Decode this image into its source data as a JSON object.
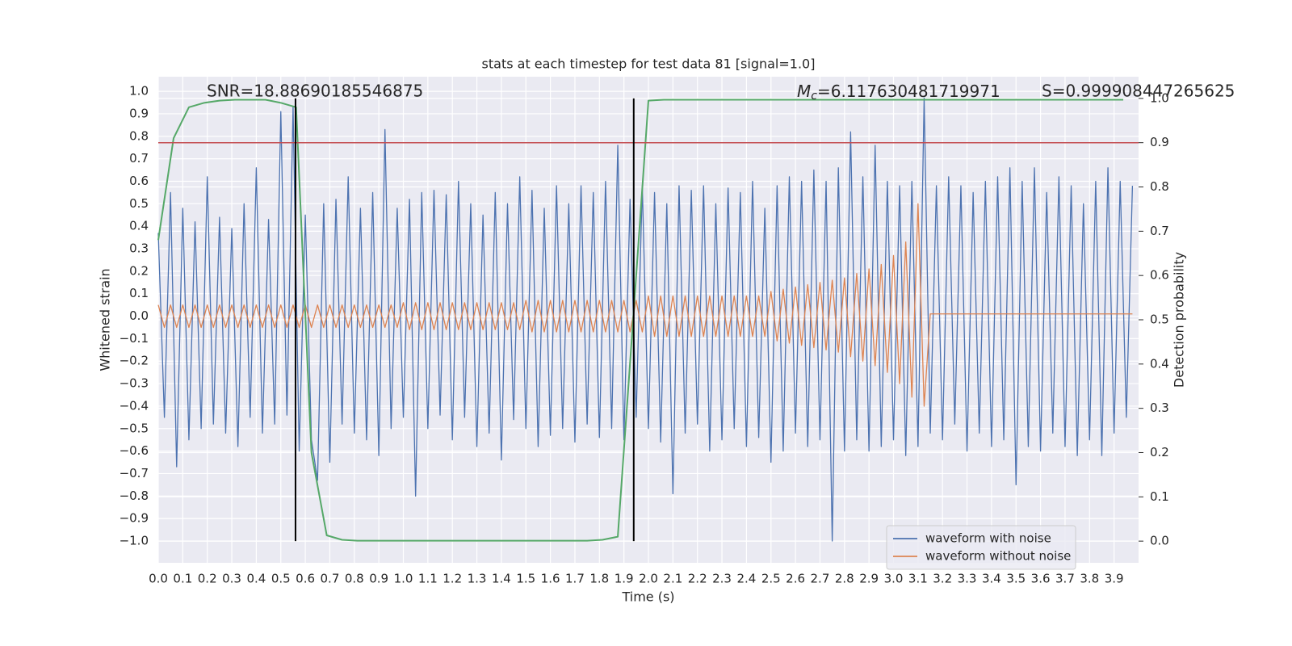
{
  "chart_data": {
    "type": "line",
    "title": "stats at each timestep for test data 81 [signal=1.0]",
    "xlabel": "Time (s)",
    "ylabel": "Whitened strain",
    "y2label": "Detection probability",
    "annotations": {
      "snr": "SNR=18.88690185546875",
      "mc_symbol": "M",
      "mc_subscript": "c",
      "mc_value": "=6.117630481719971",
      "s": "S=0.999908447265625"
    },
    "xlim": [
      0,
      4.0
    ],
    "ylim": [
      -1.097,
      1.065
    ],
    "y2lim": [
      -0.049,
      1.049
    ],
    "grid": true,
    "legend": "lower right",
    "xticks": [
      {
        "value": 0,
        "label": "0.0"
      },
      0.1,
      0.2,
      0.3,
      0.4,
      0.5,
      0.6,
      0.7,
      0.8,
      0.9,
      {
        "value": 1,
        "label": "1.0"
      },
      1.1,
      1.2,
      1.3,
      1.4,
      1.5,
      1.6,
      1.7,
      1.8,
      1.9,
      {
        "value": 2,
        "label": "2.0"
      },
      2.1,
      2.2,
      2.3,
      2.4,
      2.5,
      2.6,
      2.7,
      2.8,
      2.9,
      {
        "value": 3,
        "label": "3.0"
      },
      3.1,
      3.2,
      3.3,
      3.4,
      3.5,
      3.6,
      3.7,
      3.8,
      3.9
    ],
    "yticks": [
      {
        "value": -1,
        "label": "−1.0"
      },
      {
        "value": -0.9,
        "label": "−0.9"
      },
      {
        "value": -0.8,
        "label": "−0.8"
      },
      {
        "value": -0.7,
        "label": "−0.7"
      },
      {
        "value": -0.6,
        "label": "−0.6"
      },
      {
        "value": -0.5,
        "label": "−0.5"
      },
      {
        "value": -0.4,
        "label": "−0.4"
      },
      {
        "value": -0.3,
        "label": "−0.3"
      },
      {
        "value": -0.2,
        "label": "−0.2"
      },
      {
        "value": -0.1,
        "label": "−0.1"
      },
      {
        "value": 0,
        "label": "0.0"
      },
      0.1,
      0.2,
      0.3,
      0.4,
      0.5,
      0.6,
      0.7,
      0.8,
      0.9,
      {
        "value": 1,
        "label": "1.0"
      }
    ],
    "y2ticks": [
      {
        "value": 0,
        "label": "0.0"
      },
      0.1,
      0.2,
      0.3,
      0.4,
      0.5,
      0.6,
      0.7,
      0.8,
      0.9,
      {
        "value": 1,
        "label": "1.0"
      }
    ],
    "x": [
      0,
      0.025,
      0.05,
      0.075,
      0.1,
      0.125,
      0.15,
      0.175,
      0.2,
      0.225,
      0.25,
      0.275,
      0.3,
      0.325,
      0.35,
      0.375,
      0.4,
      0.425,
      0.45,
      0.475,
      0.5,
      0.525,
      0.55,
      0.575,
      0.6,
      0.625,
      0.65,
      0.675,
      0.7,
      0.725,
      0.75,
      0.775,
      0.8,
      0.825,
      0.85,
      0.875,
      0.9,
      0.925,
      0.95,
      0.975,
      1,
      1.025,
      1.05,
      1.075,
      1.1,
      1.125,
      1.15,
      1.175,
      1.2,
      1.225,
      1.25,
      1.275,
      1.3,
      1.325,
      1.35,
      1.375,
      1.4,
      1.425,
      1.45,
      1.475,
      1.5,
      1.525,
      1.55,
      1.575,
      1.6,
      1.625,
      1.65,
      1.675,
      1.7,
      1.725,
      1.75,
      1.775,
      1.8,
      1.825,
      1.85,
      1.875,
      1.9,
      1.925,
      1.95,
      1.975,
      2,
      2.025,
      2.05,
      2.075,
      2.1,
      2.125,
      2.15,
      2.175,
      2.2,
      2.225,
      2.25,
      2.275,
      2.3,
      2.325,
      2.35,
      2.375,
      2.4,
      2.425,
      2.45,
      2.475,
      2.5,
      2.525,
      2.55,
      2.575,
      2.6,
      2.625,
      2.65,
      2.675,
      2.7,
      2.725,
      2.75,
      2.775,
      2.8,
      2.825,
      2.85,
      2.875,
      2.9,
      2.925,
      2.95,
      2.975,
      3,
      3.025,
      3.05,
      3.075,
      3.1,
      3.125,
      3.15,
      3.175,
      3.2,
      3.225,
      3.25,
      3.275,
      3.3,
      3.325,
      3.35,
      3.375,
      3.4,
      3.425,
      3.45,
      3.475,
      3.5,
      3.525,
      3.55,
      3.575,
      3.6,
      3.625,
      3.65,
      3.675,
      3.7,
      3.725,
      3.75,
      3.775,
      3.8,
      3.825,
      3.85,
      3.875,
      3.9,
      3.925,
      3.95,
      3.975
    ],
    "series": [
      {
        "name": "waveform with noise",
        "color": "#4c72b0",
        "values": [
          0.37,
          -0.45,
          0.55,
          -0.67,
          0.48,
          -0.55,
          0.42,
          -0.5,
          0.62,
          -0.48,
          0.44,
          -0.52,
          0.39,
          -0.58,
          0.5,
          -0.45,
          0.66,
          -0.52,
          0.43,
          -0.48,
          0.91,
          -0.44,
          0.93,
          -0.6,
          0.45,
          -0.55,
          -0.73,
          0.5,
          -0.65,
          0.52,
          -0.48,
          0.62,
          -0.52,
          0.48,
          -0.55,
          0.55,
          -0.62,
          0.83,
          -0.5,
          0.48,
          -0.45,
          0.52,
          -0.8,
          0.55,
          -0.5,
          0.56,
          -0.44,
          0.54,
          -0.55,
          0.6,
          -0.45,
          0.5,
          -0.58,
          0.45,
          -0.52,
          0.55,
          -0.64,
          0.5,
          -0.46,
          0.62,
          -0.5,
          0.56,
          -0.58,
          0.48,
          -0.53,
          0.58,
          -0.5,
          0.5,
          -0.56,
          0.58,
          -0.48,
          0.55,
          -0.54,
          0.6,
          -0.5,
          0.76,
          -0.55,
          0.52,
          -0.45,
          0.58,
          -0.5,
          0.55,
          -0.56,
          0.5,
          -0.79,
          0.58,
          -0.52,
          0.56,
          -0.48,
          0.58,
          -0.6,
          0.5,
          -0.55,
          0.57,
          -0.5,
          0.55,
          -0.58,
          0.6,
          -0.54,
          0.48,
          -0.65,
          0.58,
          -0.6,
          0.62,
          -0.52,
          0.6,
          -0.58,
          0.65,
          -0.55,
          0.6,
          -1.0,
          0.66,
          -0.6,
          0.82,
          -0.55,
          0.62,
          -0.6,
          0.76,
          -0.58,
          0.6,
          -0.55,
          0.58,
          -0.62,
          0.6,
          -0.58,
          0.97,
          -0.52,
          0.58,
          -0.55,
          0.62,
          -0.48,
          0.58,
          -0.6,
          0.55,
          -0.52,
          0.6,
          -0.58,
          0.62,
          -0.55,
          0.66,
          -0.75,
          0.6,
          -0.58,
          0.66,
          -0.6,
          0.55,
          -0.52,
          0.62,
          -0.58,
          0.58,
          -0.62,
          0.5,
          -0.55,
          0.6,
          -0.62,
          0.66,
          -0.52,
          0.6,
          -0.45,
          0.58
        ]
      },
      {
        "name": "waveform without noise",
        "color": "#dd8452",
        "values": [
          0.05,
          -0.05,
          0.05,
          -0.05,
          0.05,
          -0.05,
          0.05,
          -0.05,
          0.05,
          -0.05,
          0.05,
          -0.05,
          0.05,
          -0.05,
          0.05,
          -0.05,
          0.05,
          -0.05,
          0.05,
          -0.05,
          0.05,
          -0.05,
          0.05,
          -0.05,
          0.05,
          -0.05,
          0.05,
          -0.05,
          0.05,
          -0.05,
          0.05,
          -0.05,
          0.05,
          -0.05,
          0.05,
          -0.05,
          0.05,
          -0.05,
          0.05,
          -0.05,
          0.06,
          -0.06,
          0.06,
          -0.06,
          0.06,
          -0.06,
          0.06,
          -0.06,
          0.06,
          -0.06,
          0.06,
          -0.06,
          0.06,
          -0.06,
          0.06,
          -0.06,
          0.06,
          -0.06,
          0.06,
          -0.06,
          0.07,
          -0.07,
          0.07,
          -0.07,
          0.07,
          -0.07,
          0.07,
          -0.07,
          0.07,
          -0.07,
          0.07,
          -0.07,
          0.07,
          -0.07,
          0.07,
          -0.07,
          0.07,
          -0.07,
          0.07,
          -0.07,
          0.09,
          -0.09,
          0.09,
          -0.09,
          0.09,
          -0.09,
          0.09,
          -0.09,
          0.09,
          -0.09,
          0.09,
          -0.09,
          0.09,
          -0.09,
          0.09,
          -0.09,
          0.09,
          -0.09,
          0.09,
          -0.09,
          0.11,
          -0.11,
          0.12,
          -0.12,
          0.13,
          -0.13,
          0.14,
          -0.14,
          0.15,
          -0.15,
          0.16,
          -0.16,
          0.17,
          -0.18,
          0.19,
          -0.2,
          0.21,
          -0.22,
          0.23,
          -0.25,
          0.27,
          -0.3,
          0.33,
          -0.36,
          0.5,
          -0.4,
          0.01,
          0.01,
          0.01,
          0.01,
          0.01,
          0.01,
          0.01,
          0.01,
          0.01,
          0.01,
          0.01,
          0.01,
          0.01,
          0.01,
          0.01,
          0.01,
          0.01,
          0.01,
          0.01,
          0.01,
          0.01,
          0.01,
          0.01,
          0.01,
          0.01,
          0.01,
          0.01,
          0.01,
          0.01,
          0.01,
          0.01,
          0.01,
          0.01,
          0.01
        ]
      },
      {
        "color": "#55a868",
        "axis": "y2",
        "x": [
          0,
          0.0625,
          0.125,
          0.1875,
          0.25,
          0.3125,
          0.375,
          0.4375,
          0.5,
          0.5625,
          0.625,
          0.6875,
          0.75,
          0.8125,
          0.875,
          0.9375,
          1,
          1.0625,
          1.125,
          1.1875,
          1.25,
          1.3125,
          1.375,
          1.4375,
          1.5,
          1.5625,
          1.625,
          1.6875,
          1.75,
          1.8125,
          1.875,
          1.9375,
          2,
          2.0625,
          2.125,
          2.1875,
          2.25,
          2.3125,
          2.375,
          2.4375,
          2.5,
          2.5625,
          2.625,
          2.6875,
          2.75,
          2.8125,
          2.875,
          2.9375,
          3,
          3.0625,
          3.125,
          3.1875,
          3.25,
          3.3125,
          3.375,
          3.4375,
          3.5,
          3.5625,
          3.625,
          3.6875,
          3.75,
          3.8125,
          3.875,
          3.9375
        ],
        "values": [
          0.68,
          0.91,
          0.98,
          0.99,
          0.995,
          0.997,
          0.997,
          0.997,
          0.99,
          0.98,
          0.2,
          0.013,
          0.003,
          0.001,
          0.001,
          0.001,
          0.001,
          0.001,
          0.001,
          0.001,
          0.001,
          0.001,
          0.001,
          0.001,
          0.001,
          0.001,
          0.001,
          0.001,
          0.001,
          0.003,
          0.01,
          0.5,
          0.995,
          0.997,
          0.997,
          0.997,
          0.997,
          0.997,
          0.997,
          0.997,
          0.997,
          0.997,
          0.997,
          0.997,
          0.997,
          0.997,
          0.997,
          0.997,
          0.997,
          0.997,
          0.997,
          0.997,
          0.997,
          0.997,
          0.997,
          0.997,
          0.997,
          0.997,
          0.997,
          0.997,
          0.997,
          0.997,
          0.997,
          0.997
        ]
      }
    ],
    "hlines": [
      {
        "y": 0.9,
        "axis": "y2",
        "color": "#c44e52"
      }
    ],
    "vlines": [
      {
        "x": 0.56,
        "ymin": 0,
        "ymax": 1,
        "axis": "y2",
        "color": "#000000"
      },
      {
        "x": 1.94,
        "ymin": 0,
        "ymax": 1,
        "axis": "y2",
        "color": "#000000"
      }
    ]
  }
}
